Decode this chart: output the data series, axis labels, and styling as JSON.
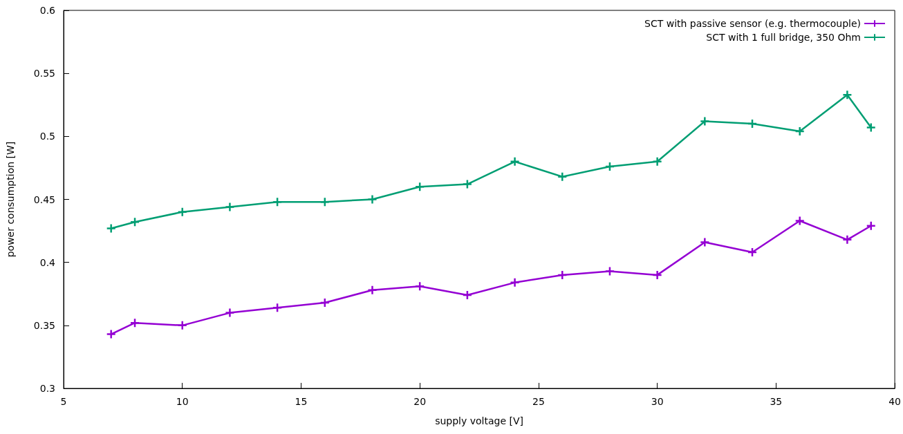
{
  "chart_data": {
    "type": "line",
    "xlabel": "supply voltage [V]",
    "ylabel": "power consumption [W]",
    "x": [
      7,
      8,
      10,
      12,
      14,
      16,
      18,
      20,
      22,
      24,
      26,
      28,
      30,
      32,
      34,
      36,
      38,
      39
    ],
    "series": [
      {
        "name": "SCT with passive sensor (e.g. thermocouple)",
        "color": "#9400d3",
        "values": [
          0.343,
          0.352,
          0.35,
          0.36,
          0.364,
          0.368,
          0.378,
          0.381,
          0.374,
          0.384,
          0.39,
          0.393,
          0.39,
          0.416,
          0.408,
          0.433,
          0.418,
          0.429
        ]
      },
      {
        "name": "SCT with 1 full bridge, 350 Ohm",
        "color": "#009e73",
        "values": [
          0.427,
          0.432,
          0.44,
          0.444,
          0.448,
          0.448,
          0.45,
          0.46,
          0.462,
          0.48,
          0.468,
          0.476,
          0.48,
          0.512,
          0.51,
          0.504,
          0.533,
          0.507
        ]
      }
    ],
    "xlim": [
      5,
      40
    ],
    "xticks": [
      5,
      10,
      15,
      20,
      25,
      30,
      35,
      40
    ],
    "ylim": [
      0.3,
      0.6
    ],
    "yticks": [
      0.3,
      0.35,
      0.4,
      0.45,
      0.5,
      0.55,
      0.6
    ],
    "grid": false,
    "legend": "top right",
    "marker": "cross",
    "line_style": "solid"
  }
}
